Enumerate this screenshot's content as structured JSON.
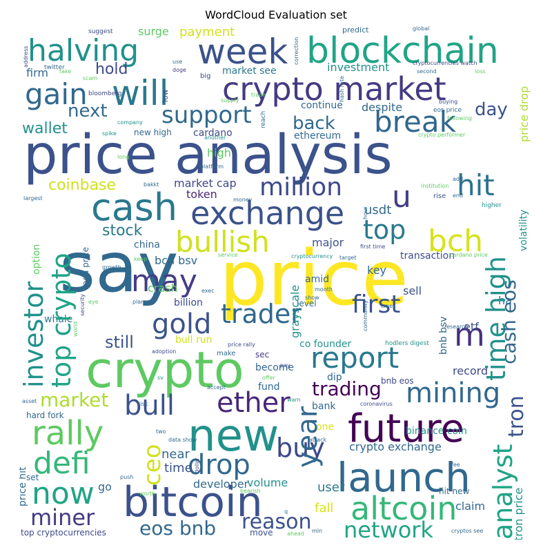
{
  "title": "WordCloud Evaluation set",
  "words": [
    {
      "text": "price analysis",
      "color": "#3b528b"
    },
    {
      "text": "price",
      "color": "#fde725"
    },
    {
      "text": "say",
      "color": "#31688e"
    },
    {
      "text": "crypto",
      "color": "#5ec962"
    },
    {
      "text": "new",
      "color": "#21918c"
    },
    {
      "text": "bitcoin",
      "color": "#3b528b"
    },
    {
      "text": "launch",
      "color": "#31688e"
    },
    {
      "text": "future",
      "color": "#440154"
    },
    {
      "text": "altcoin",
      "color": "#35b779"
    },
    {
      "text": "blockchain",
      "color": "#20a486"
    },
    {
      "text": "crypto market",
      "color": "#443a83"
    },
    {
      "text": "will",
      "color": "#2a788e"
    },
    {
      "text": "week",
      "color": "#3b528b"
    },
    {
      "text": "halving",
      "color": "#21918c"
    },
    {
      "text": "gain",
      "color": "#31688e"
    },
    {
      "text": "cash",
      "color": "#2a788e"
    },
    {
      "text": "exchange",
      "color": "#3b528b"
    },
    {
      "text": "break",
      "color": "#31688e"
    },
    {
      "text": "hit",
      "color": "#2c728e"
    },
    {
      "text": "u",
      "color": "#433e85"
    },
    {
      "text": "support",
      "color": "#31688e"
    },
    {
      "text": "bullish",
      "color": "#d0e11c"
    },
    {
      "text": "bch",
      "color": "#d8e219"
    },
    {
      "text": "top",
      "color": "#2a788e"
    },
    {
      "text": "million",
      "color": "#3e4989"
    },
    {
      "text": "trader",
      "color": "#31688e"
    },
    {
      "text": "gold",
      "color": "#3b528b"
    },
    {
      "text": "may",
      "color": "#433e85"
    },
    {
      "text": "first",
      "color": "#3b528b"
    },
    {
      "text": "report",
      "color": "#2a788e"
    },
    {
      "text": "m",
      "color": "#46307e"
    },
    {
      "text": "mining",
      "color": "#31688e"
    },
    {
      "text": "ether",
      "color": "#482878"
    },
    {
      "text": "bull",
      "color": "#3b528b"
    },
    {
      "text": "rally",
      "color": "#5ec962"
    },
    {
      "text": "trading",
      "color": "#440154"
    },
    {
      "text": "defi",
      "color": "#35b779"
    },
    {
      "text": "drop",
      "color": "#31688e"
    },
    {
      "text": "buy",
      "color": "#3e4989"
    },
    {
      "text": "now",
      "color": "#20a486"
    },
    {
      "text": "miner",
      "color": "#443a83"
    },
    {
      "text": "network",
      "color": "#20a486"
    },
    {
      "text": "reason",
      "color": "#3b528b"
    },
    {
      "text": "eos bnb",
      "color": "#31688e"
    },
    {
      "text": "market",
      "color": "#addc30"
    },
    {
      "text": "next",
      "color": "#31688e"
    },
    {
      "text": "hold",
      "color": "#3e4989"
    },
    {
      "text": "wallet",
      "color": "#21918c"
    },
    {
      "text": "back",
      "color": "#31688e"
    },
    {
      "text": "day",
      "color": "#3b528b"
    },
    {
      "text": "coinbase",
      "color": "#d0e11c"
    },
    {
      "text": "stock",
      "color": "#2a788e"
    },
    {
      "text": "still",
      "color": "#3b528b"
    },
    {
      "text": "fall",
      "color": "#d8e219"
    },
    {
      "text": "user",
      "color": "#2a788e"
    },
    {
      "text": "go",
      "color": "#31688e"
    },
    {
      "text": "time",
      "color": "#3b528b"
    },
    {
      "text": "near",
      "color": "#31688e"
    },
    {
      "text": "volume",
      "color": "#21918c"
    },
    {
      "text": "developer",
      "color": "#31688e"
    },
    {
      "text": "payment",
      "color": "#d0e11c"
    },
    {
      "text": "surge",
      "color": "#5ec962"
    },
    {
      "text": "investment",
      "color": "#21918c"
    },
    {
      "text": "market see",
      "color": "#2a788e"
    },
    {
      "text": "firm",
      "color": "#31688e"
    },
    {
      "text": "continue",
      "color": "#31688e"
    },
    {
      "text": "despite",
      "color": "#31688e"
    },
    {
      "text": "ethereum",
      "color": "#31688e"
    },
    {
      "text": "new high",
      "color": "#31688e"
    },
    {
      "text": "cardano",
      "color": "#3e4989"
    },
    {
      "text": "high",
      "color": "#5ec962"
    },
    {
      "text": "market cap",
      "color": "#3e4989"
    },
    {
      "text": "token",
      "color": "#482878"
    },
    {
      "text": "usdt",
      "color": "#31688e"
    },
    {
      "text": "china",
      "color": "#31688e"
    },
    {
      "text": "bch bsv",
      "color": "#31688e"
    },
    {
      "text": "major",
      "color": "#3b528b"
    },
    {
      "text": "transaction",
      "color": "#3e4989"
    },
    {
      "text": "key",
      "color": "#31688e"
    },
    {
      "text": "amid",
      "color": "#31688e"
    },
    {
      "text": "sell",
      "color": "#3b528b"
    },
    {
      "text": "crash",
      "color": "#5ec962"
    },
    {
      "text": "billion",
      "color": "#3e4989"
    },
    {
      "text": "whale",
      "color": "#2a788e"
    },
    {
      "text": "level",
      "color": "#31688e"
    },
    {
      "text": "bull run",
      "color": "#d0e11c"
    },
    {
      "text": "etf",
      "color": "#3b528b"
    },
    {
      "text": "ha",
      "color": "#31688e"
    },
    {
      "text": "co founder",
      "color": "#21918c"
    },
    {
      "text": "sec",
      "color": "#443a83"
    },
    {
      "text": "become",
      "color": "#31688e"
    },
    {
      "text": "record",
      "color": "#3e4989"
    },
    {
      "text": "dip",
      "color": "#31688e"
    },
    {
      "text": "bnb eos",
      "color": "#3e4989"
    },
    {
      "text": "fund",
      "color": "#31688e"
    },
    {
      "text": "bank",
      "color": "#31688e"
    },
    {
      "text": "one",
      "color": "#d8e219"
    },
    {
      "text": "crypto exchange",
      "color": "#31688e"
    },
    {
      "text": "binance coin",
      "color": "#21918c"
    },
    {
      "text": "hard fork",
      "color": "#31688e"
    },
    {
      "text": "set",
      "color": "#31688e"
    },
    {
      "text": "claim",
      "color": "#31688e"
    },
    {
      "text": "hit new",
      "color": "#31688e"
    },
    {
      "text": "top cryptocurrencies",
      "color": "#3e4989"
    },
    {
      "text": "move",
      "color": "#3b528b"
    },
    {
      "text": "suggest",
      "color": "#3e4989"
    },
    {
      "text": "twitter",
      "color": "#31688e"
    },
    {
      "text": "use",
      "color": "#31688e"
    },
    {
      "text": "doge",
      "color": "#443a83"
    },
    {
      "text": "predict",
      "color": "#31688e"
    },
    {
      "text": "global",
      "color": "#31688e"
    },
    {
      "text": "cryptocurrencies watch",
      "color": "#3e4989"
    },
    {
      "text": "second",
      "color": "#31688e"
    },
    {
      "text": "take",
      "color": "#5ec962"
    },
    {
      "text": "scam",
      "color": "#5ec962"
    },
    {
      "text": "big",
      "color": "#3e4989"
    },
    {
      "text": "supply",
      "color": "#5ec962"
    },
    {
      "text": "trade",
      "color": "#5ec962"
    },
    {
      "text": "buying",
      "color": "#3e4989"
    },
    {
      "text": "loss",
      "color": "#5ec962"
    },
    {
      "text": "bloomberg",
      "color": "#3e4989"
    },
    {
      "text": "company",
      "color": "#21918c"
    },
    {
      "text": "eos price",
      "color": "#31688e"
    },
    {
      "text": "following",
      "color": "#5ec962"
    },
    {
      "text": "crypto performer",
      "color": "#5ec962"
    },
    {
      "text": "spike",
      "color": "#21918c"
    },
    {
      "text": "another",
      "color": "#21918c"
    },
    {
      "text": "long",
      "color": "#5ec962"
    },
    {
      "text": "platform",
      "color": "#31688e"
    },
    {
      "text": "bakkt",
      "color": "#31688e"
    },
    {
      "text": "add",
      "color": "#31688e"
    },
    {
      "text": "institution",
      "color": "#5ec962"
    },
    {
      "text": "largest",
      "color": "#31688e"
    },
    {
      "text": "money",
      "color": "#31688e"
    },
    {
      "text": "rise",
      "color": "#3b528b"
    },
    {
      "text": "end",
      "color": "#31688e"
    },
    {
      "text": "higher",
      "color": "#21918c"
    },
    {
      "text": "growth",
      "color": "#31688e"
    },
    {
      "text": "service",
      "color": "#5ec962"
    },
    {
      "text": "first time",
      "color": "#3e4989"
    },
    {
      "text": "target",
      "color": "#31688e"
    },
    {
      "text": "cryptocurrency",
      "color": "#21918c"
    },
    {
      "text": "cardano price",
      "color": "#5ec962"
    },
    {
      "text": "keep",
      "color": "#5ec962"
    },
    {
      "text": "month",
      "color": "#31688e"
    },
    {
      "text": "cme",
      "color": "#31688e"
    },
    {
      "text": "show",
      "color": "#31688e"
    },
    {
      "text": "research",
      "color": "#31688e"
    },
    {
      "text": "exec",
      "color": "#31688e"
    },
    {
      "text": "eye",
      "color": "#5ec962"
    },
    {
      "text": "plan",
      "color": "#31688e"
    },
    {
      "text": "adoption",
      "color": "#3e4989"
    },
    {
      "text": "price rally",
      "color": "#3e4989"
    },
    {
      "text": "hodlers digest",
      "color": "#21918c"
    },
    {
      "text": "make",
      "color": "#31688e"
    },
    {
      "text": "pay",
      "color": "#3e4989"
    },
    {
      "text": "offer",
      "color": "#5ec962"
    },
    {
      "text": "sv",
      "color": "#21918c"
    },
    {
      "text": "accept",
      "color": "#31688e"
    },
    {
      "text": "asset",
      "color": "#31688e"
    },
    {
      "text": "risk",
      "color": "#31688e"
    },
    {
      "text": "warn",
      "color": "#21918c"
    },
    {
      "text": "coronavirus",
      "color": "#3e4989"
    },
    {
      "text": "two",
      "color": "#31688e"
    },
    {
      "text": "data show",
      "color": "#31688e"
    },
    {
      "text": "attack",
      "color": "#31688e"
    },
    {
      "text": "fee",
      "color": "#31688e"
    },
    {
      "text": "push",
      "color": "#31688e"
    },
    {
      "text": "worth",
      "color": "#5ec962"
    },
    {
      "text": "bearish",
      "color": "#5ec962"
    },
    {
      "text": "ahead",
      "color": "#5ec962"
    },
    {
      "text": "mln",
      "color": "#31688e"
    },
    {
      "text": "cryptos see",
      "color": "#31688e"
    },
    {
      "text": "q",
      "color": "#31688e"
    },
    {
      "text": "address",
      "color": "#3e4989"
    },
    {
      "text": "option",
      "color": "#5ec962"
    },
    {
      "text": "price hit",
      "color": "#31688e"
    },
    {
      "text": "ada price",
      "color": "#31688e"
    },
    {
      "text": "security",
      "color": "#3e4989"
    },
    {
      "text": "world",
      "color": "#5ec962"
    },
    {
      "text": "correction",
      "color": "#31688e"
    },
    {
      "text": "low",
      "color": "#3e4989"
    },
    {
      "text": "reach",
      "color": "#31688e"
    },
    {
      "text": "hash rate",
      "color": "#31688e"
    },
    {
      "text": "grayscale",
      "color": "#21918c"
    },
    {
      "text": "community",
      "color": "#31688e"
    },
    {
      "text": "hour",
      "color": "#31688e"
    },
    {
      "text": "bnb bsv",
      "color": "#31688e"
    },
    {
      "text": "dollar",
      "color": "#3e4989"
    },
    {
      "text": "top crypto",
      "color": "#20a486"
    },
    {
      "text": "investor",
      "color": "#21918c"
    },
    {
      "text": "ceo",
      "color": "#d0e11c"
    },
    {
      "text": "year",
      "color": "#31688e"
    },
    {
      "text": "time high",
      "color": "#21918c"
    },
    {
      "text": "cash eos",
      "color": "#31688e"
    },
    {
      "text": "analyst",
      "color": "#20a486"
    },
    {
      "text": "tron",
      "color": "#3b528b"
    },
    {
      "text": "tron price",
      "color": "#21918c"
    },
    {
      "text": "volatility",
      "color": "#21918c"
    },
    {
      "text": "price drop",
      "color": "#addc30"
    },
    {
      "text": "b",
      "color": "#3b528b"
    }
  ]
}
